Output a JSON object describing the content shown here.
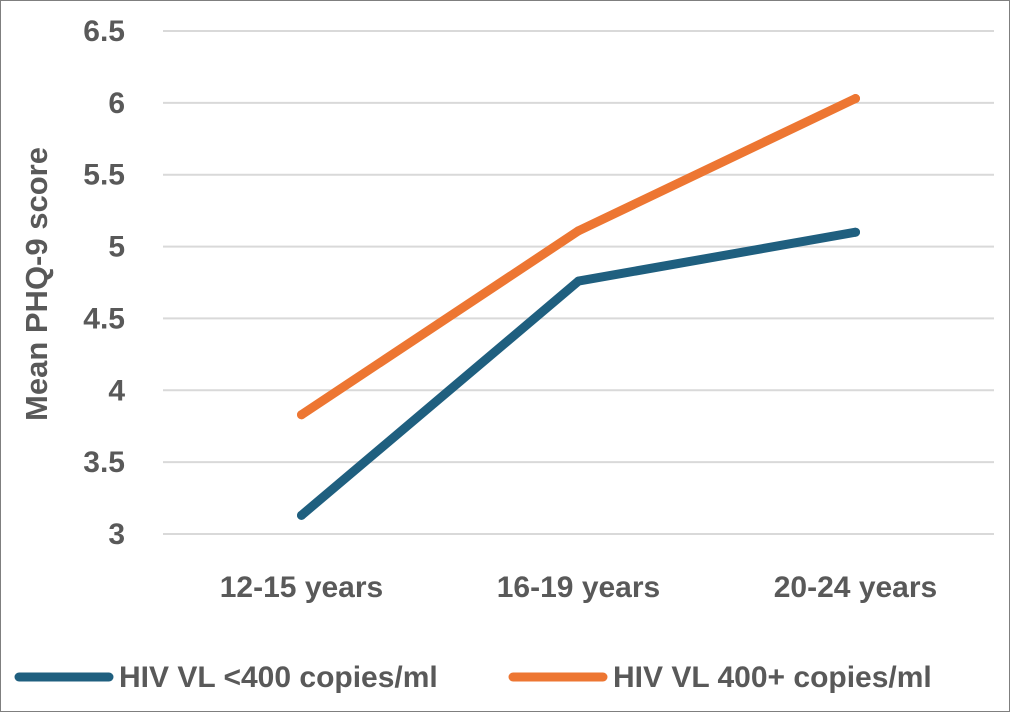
{
  "chart_data": {
    "type": "line",
    "title": "",
    "xlabel": "",
    "ylabel": "Mean PHQ-9 score",
    "categories": [
      "12-15 years",
      "16-19 years",
      "20-24 years"
    ],
    "ylim": [
      3,
      6.5
    ],
    "yticks": [
      "3",
      "3.5",
      "4",
      "4.5",
      "5",
      "5.5",
      "6",
      "6.5"
    ],
    "grid": true,
    "legend_position": "bottom",
    "series": [
      {
        "name": "HIV VL <400 copies/ml",
        "color": "#1f5f7f",
        "values": [
          3.13,
          4.76,
          5.1
        ]
      },
      {
        "name": "HIV VL 400+ copies/ml",
        "color": "#ed7632",
        "values": [
          3.83,
          5.11,
          6.03
        ]
      }
    ]
  }
}
